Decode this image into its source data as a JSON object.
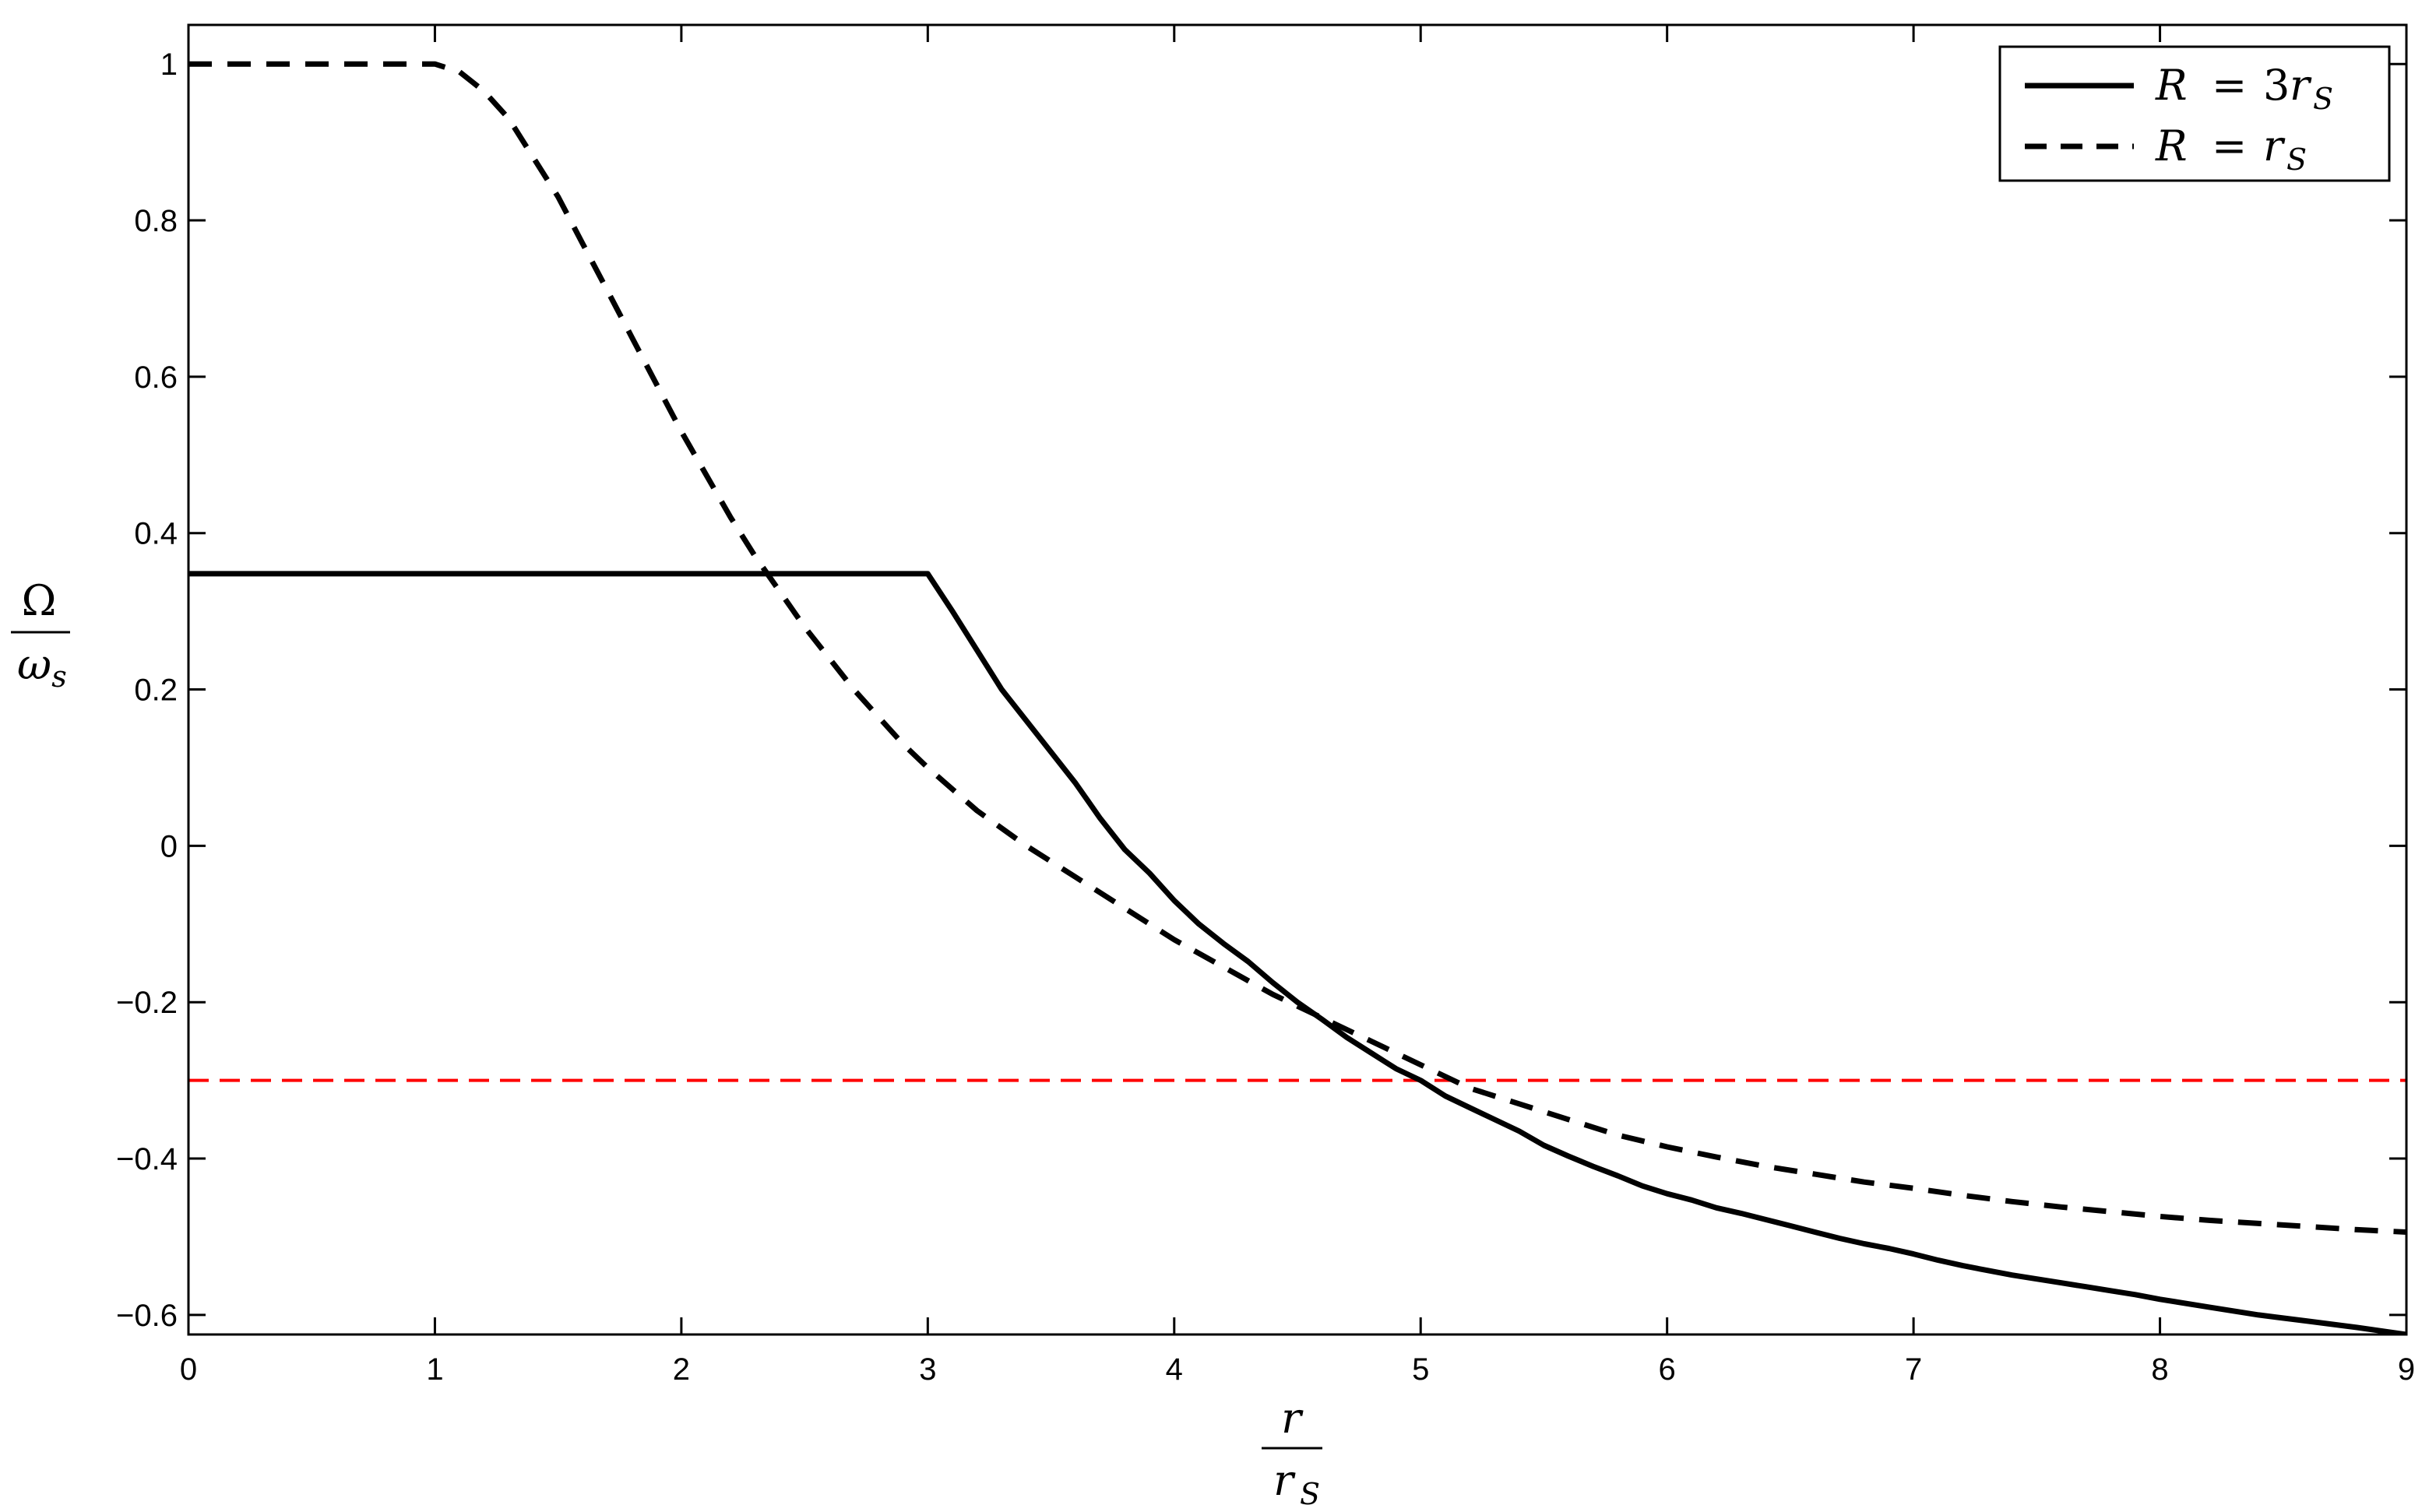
{
  "chart_data": {
    "type": "line",
    "xlim": [
      0,
      9
    ],
    "ylim": [
      -0.625,
      1.05
    ],
    "xticks": [
      0,
      1,
      2,
      3,
      4,
      5,
      6,
      7,
      8,
      9
    ],
    "xtick_labels": [
      "0",
      "1",
      "2",
      "3",
      "4",
      "5",
      "6",
      "7",
      "8",
      "9"
    ],
    "yticks": [
      -0.6,
      -0.4,
      -0.2,
      0,
      0.2,
      0.4,
      0.6,
      0.8,
      1
    ],
    "ytick_labels": [
      "−0.6",
      "−0.4",
      "−0.2",
      "0",
      "0.2",
      "0.4",
      "0.6",
      "0.8",
      "1"
    ],
    "xlabel": {
      "numerator": "r",
      "denominator_base": "r",
      "denominator_sub": "S"
    },
    "ylabel": {
      "numerator": "Ω",
      "denominator_base": "ω",
      "denominator_sub": "s"
    },
    "grid": false,
    "legend_position": "top-right",
    "series": [
      {
        "name": "R = 3r_S",
        "legend": {
          "lhs": "R",
          "rhs_coef": "3",
          "rhs_base": "r",
          "rhs_sub": "S"
        },
        "style": "solid",
        "color": "#000000",
        "x": [
          0,
          0.5,
          1,
          1.5,
          2,
          2.5,
          3,
          3.1,
          3.2,
          3.3,
          3.4,
          3.5,
          3.6,
          3.7,
          3.8,
          3.9,
          4.0,
          4.1,
          4.2,
          4.3,
          4.4,
          4.5,
          4.6,
          4.7,
          4.8,
          4.9,
          5.0,
          5.1,
          5.2,
          5.3,
          5.4,
          5.5,
          5.6,
          5.7,
          5.8,
          5.9,
          6.0,
          6.1,
          6.2,
          6.3,
          6.4,
          6.5,
          6.6,
          6.7,
          6.8,
          6.9,
          7.0,
          7.1,
          7.2,
          7.3,
          7.4,
          7.5,
          7.6,
          7.7,
          7.8,
          7.9,
          8.0,
          8.2,
          8.4,
          8.6,
          8.8,
          9.0
        ],
        "y": [
          0.348,
          0.348,
          0.348,
          0.348,
          0.348,
          0.348,
          0.348,
          0.3,
          0.25,
          0.2,
          0.16,
          0.12,
          0.08,
          0.035,
          -0.005,
          -0.035,
          -0.07,
          -0.1,
          -0.125,
          -0.148,
          -0.175,
          -0.2,
          -0.222,
          -0.245,
          -0.265,
          -0.285,
          -0.3,
          -0.32,
          -0.335,
          -0.35,
          -0.365,
          -0.383,
          -0.397,
          -0.41,
          -0.422,
          -0.435,
          -0.445,
          -0.453,
          -0.463,
          -0.47,
          -0.478,
          -0.486,
          -0.494,
          -0.502,
          -0.509,
          -0.515,
          -0.522,
          -0.53,
          -0.537,
          -0.543,
          -0.549,
          -0.554,
          -0.559,
          -0.564,
          -0.569,
          -0.574,
          -0.58,
          -0.59,
          -0.6,
          -0.608,
          -0.616,
          -0.625
        ]
      },
      {
        "name": "R = r_S",
        "legend": {
          "lhs": "R",
          "rhs_coef": "",
          "rhs_base": "r",
          "rhs_sub": "S"
        },
        "style": "dashed",
        "color": "#000000",
        "x": [
          0,
          0.5,
          1,
          1.1,
          1.2,
          1.3,
          1.4,
          1.5,
          1.6,
          1.7,
          1.8,
          1.9,
          2.0,
          2.1,
          2.2,
          2.3,
          2.4,
          2.5,
          2.6,
          2.7,
          2.8,
          2.9,
          3.0,
          3.2,
          3.4,
          3.6,
          3.8,
          4.0,
          4.2,
          4.4,
          4.6,
          4.8,
          5.0,
          5.2,
          5.4,
          5.6,
          5.8,
          6.0,
          6.2,
          6.4,
          6.6,
          6.8,
          7.0,
          7.2,
          7.4,
          7.6,
          7.8,
          8.0,
          8.2,
          8.4,
          8.6,
          8.8,
          9.0
        ],
        "y": [
          1.0,
          1.0,
          1.0,
          0.99,
          0.965,
          0.93,
          0.88,
          0.83,
          0.77,
          0.71,
          0.65,
          0.59,
          0.53,
          0.475,
          0.42,
          0.37,
          0.325,
          0.28,
          0.24,
          0.2,
          0.165,
          0.13,
          0.1,
          0.045,
          0.0,
          -0.04,
          -0.08,
          -0.12,
          -0.155,
          -0.19,
          -0.22,
          -0.25,
          -0.28,
          -0.31,
          -0.33,
          -0.35,
          -0.37,
          -0.385,
          -0.398,
          -0.41,
          -0.42,
          -0.43,
          -0.438,
          -0.447,
          -0.455,
          -0.462,
          -0.468,
          -0.474,
          -0.479,
          -0.483,
          -0.487,
          -0.491,
          -0.494
        ]
      }
    ],
    "reference_line": {
      "y": -0.3,
      "style": "dashed",
      "color": "#ff0000"
    }
  }
}
